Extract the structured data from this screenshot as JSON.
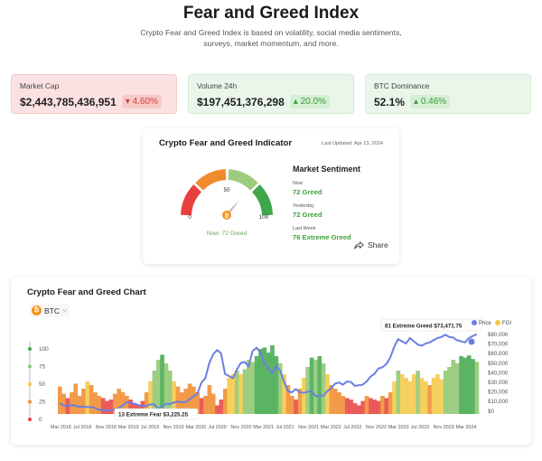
{
  "header": {
    "title": "Fear and Greed Index",
    "subtitle": "Crypto Fear and Greed Index is based on volatility, social media sentiments, surveys, market momentum, and more."
  },
  "stats": {
    "market_cap": {
      "label": "Market Cap",
      "value": "$2,443,785,436,951",
      "change": "4.60%",
      "direction": "down"
    },
    "volume": {
      "label": "Volume 24h",
      "value": "$197,451,376,298",
      "change": "20.0%",
      "direction": "up"
    },
    "dominance": {
      "label": "BTC Dominance",
      "value": "52.1%",
      "change": "0.46%",
      "direction": "up"
    }
  },
  "indicator": {
    "title": "Crypto Fear and Greed Indicator",
    "last_updated": "Last Updated: Apr 13, 2024",
    "gauge": {
      "min": "0",
      "mid": "50",
      "max": "100",
      "value": 72,
      "now_label": "Now: 72 Greed"
    },
    "sentiment": {
      "title": "Market Sentiment",
      "now_label": "Now",
      "now_value": "72 Greed",
      "yesterday_label": "Yesterday",
      "yesterday_value": "72 Greed",
      "last_week_label": "Last Week",
      "last_week_value": "76 Extreme Greed"
    },
    "share_label": "Share"
  },
  "chart": {
    "title": "Crypto Fear and Greed Chart",
    "coin_select": "BTC",
    "legend": {
      "price": "Price",
      "fgi": "FGI"
    },
    "tooltip_high": "81 Extreme Greed $73,471.75",
    "tooltip_low": "13 Extreme Fear $3,225.25"
  },
  "colors": {
    "extreme_fear": "#e8403f",
    "fear": "#f08a2c",
    "neutral": "#f5c842",
    "greed": "#8cc66d",
    "extreme_greed": "#3fa74a",
    "price_line": "#6c7fe0"
  },
  "chart_data": {
    "type": "bar",
    "series_fgi_name": "FGI",
    "series_price_name": "Price",
    "y_left_ticks": [
      "100",
      "75",
      "50",
      "25",
      "0"
    ],
    "y_left_range": [
      0,
      100
    ],
    "y_right_ticks": [
      "$80,000",
      "$70,000",
      "$60,000",
      "$50,000",
      "$40,000",
      "$30,000",
      "$20,000",
      "$10,000",
      "$0"
    ],
    "y_right_range": [
      0,
      80000
    ],
    "x_ticks": [
      "Mar 2018",
      "Jul 2018",
      "Nov 2018",
      "Mar 2019",
      "Jul 2019",
      "Nov 2019",
      "Mar 2020",
      "Jul 2020",
      "Nov 2020",
      "Mar 2021",
      "Jul 2021",
      "Nov 2021",
      "Mar 2022",
      "Jul 2022",
      "Nov 2022",
      "Mar 2023",
      "Jul 2023",
      "Nov 2023",
      "Mar 2024"
    ],
    "fgi": [
      38,
      28,
      22,
      30,
      42,
      25,
      35,
      45,
      40,
      30,
      25,
      22,
      18,
      20,
      28,
      35,
      30,
      25,
      20,
      15,
      13,
      18,
      30,
      45,
      60,
      75,
      82,
      70,
      60,
      45,
      38,
      30,
      35,
      42,
      38,
      30,
      22,
      25,
      40,
      28,
      12,
      20,
      35,
      50,
      55,
      60,
      55,
      62,
      75,
      72,
      80,
      90,
      92,
      85,
      95,
      80,
      70,
      55,
      40,
      25,
      20,
      35,
      50,
      65,
      78,
      75,
      80,
      70,
      55,
      40,
      35,
      30,
      25,
      22,
      20,
      15,
      12,
      18,
      25,
      22,
      20,
      18,
      25,
      22,
      30,
      45,
      60,
      55,
      50,
      45,
      55,
      60,
      50,
      45,
      40,
      50,
      55,
      48,
      60,
      65,
      75,
      70,
      80,
      78,
      81,
      76,
      72
    ],
    "price": [
      9500,
      8000,
      7000,
      8500,
      7500,
      6500,
      6800,
      6300,
      6500,
      5500,
      3800,
      3500,
      3400,
      3600,
      4100,
      5500,
      8000,
      11000,
      10000,
      9500,
      8200,
      7500,
      7200,
      9000,
      8800,
      5000,
      7000,
      9500,
      9200,
      10500,
      11500,
      10800,
      11000,
      13500,
      16000,
      19000,
      29000,
      33000,
      47000,
      55000,
      59000,
      56000,
      37000,
      35000,
      33000,
      41000,
      47000,
      48000,
      44000,
      58000,
      61000,
      57000,
      47000,
      42000,
      38000,
      44000,
      40000,
      30000,
      21000,
      20000,
      23000,
      20000,
      19500,
      20500,
      21000,
      16500,
      16800,
      17000,
      21000,
      24000,
      28000,
      29000,
      27000,
      30000,
      29500,
      26000,
      26500,
      27000,
      30000,
      34500,
      37000,
      42000,
      43000,
      46000,
      52000,
      62000,
      69000,
      67000,
      65000,
      70000,
      67000,
      64000,
      63000,
      65000,
      66000,
      68000,
      70000,
      71000,
      73000,
      71000,
      70500,
      68000,
      67000,
      66000,
      70000,
      72000,
      73471
    ]
  }
}
